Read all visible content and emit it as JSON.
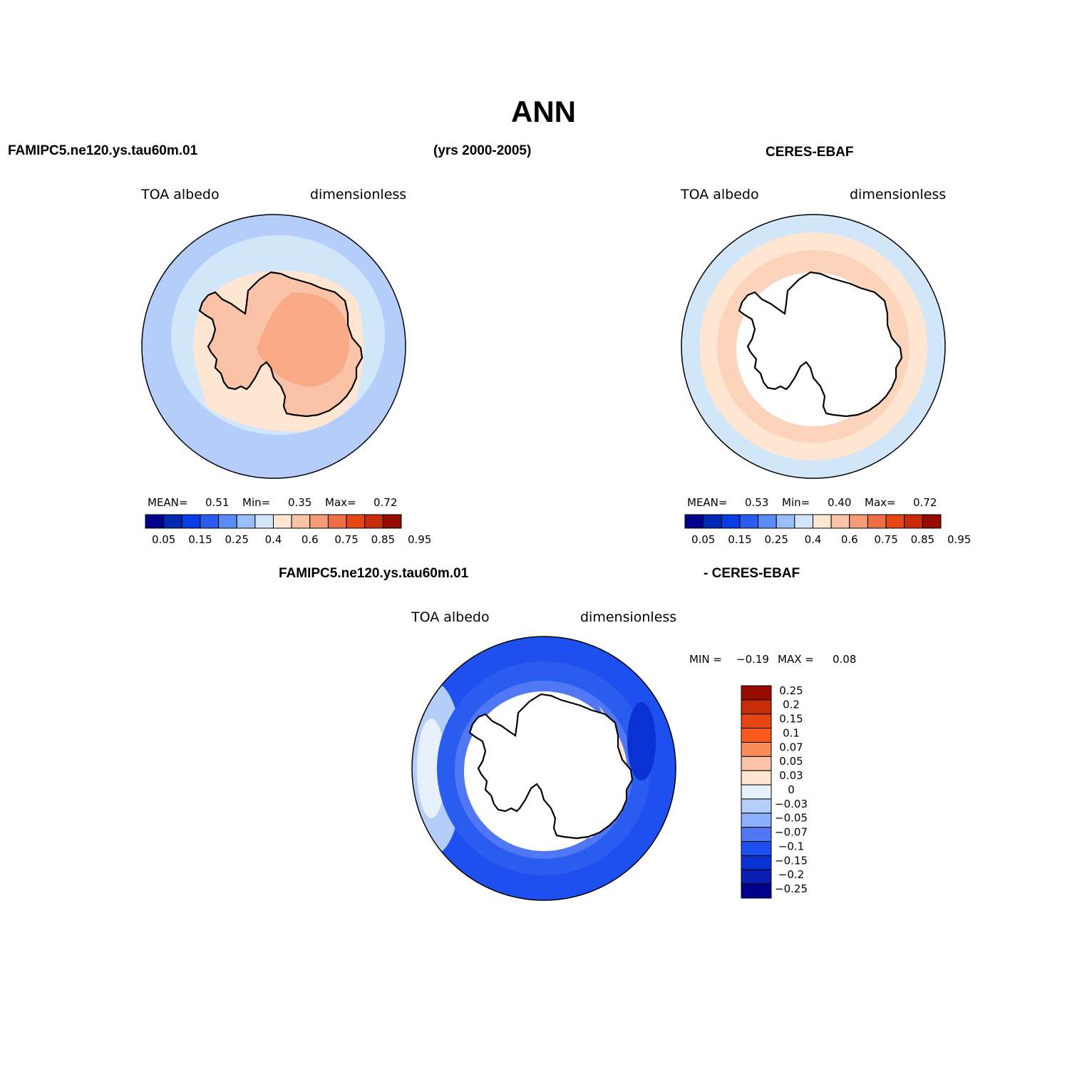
{
  "figure": {
    "title": "ANN",
    "period": "(yrs 2000-2005)"
  },
  "panels": {
    "model": {
      "case": "FAMIPC5.ne120.ys.tau60m.01",
      "variable": "TOA albedo",
      "units": "dimensionless",
      "stats": {
        "mean_label": "MEAN=",
        "mean": "0.51",
        "min_label": "Min=",
        "min": "0.35",
        "max_label": "Max=",
        "max": "0.72"
      }
    },
    "obs": {
      "case": "CERES-EBAF",
      "variable": "TOA albedo",
      "units": "dimensionless",
      "stats": {
        "mean_label": "MEAN=",
        "mean": "0.53",
        "min_label": "Min=",
        "min": "0.40",
        "max_label": "Max=",
        "max": "0.72"
      }
    },
    "diff": {
      "case_left": "FAMIPC5.ne120.ys.tau60m.01",
      "case_right": "- CERES-EBAF",
      "variable": "TOA albedo",
      "units": "dimensionless",
      "stats": {
        "min_label": "MIN =",
        "min": "−0.19",
        "max_label": "MAX =",
        "max": "0.08"
      }
    }
  },
  "colorbars": {
    "abs_colors": [
      "#00008c",
      "#002ab4",
      "#0a3ce6",
      "#2a5cf0",
      "#5a8cf5",
      "#9abefa",
      "#d2e6fa",
      "#ffe6d2",
      "#fac3a8",
      "#f59b78",
      "#f06e46",
      "#e64614",
      "#c82d0a",
      "#960a00"
    ],
    "abs_labels": [
      "0.05",
      "0.15",
      "0.25",
      "0.4",
      "0.6",
      "0.75",
      "0.85",
      "0.95"
    ],
    "diff_colors": [
      "#960a00",
      "#c82d0a",
      "#e64614",
      "#fa5a1e",
      "#fa8c5a",
      "#fac3a8",
      "#ffe6d2",
      "#e6f0fa",
      "#b4cdfa",
      "#8cafff",
      "#5078f5",
      "#1e50f0",
      "#0a32d2",
      "#0a1eb4",
      "#00008c"
    ],
    "diff_labels": [
      "0.25",
      "0.2",
      "0.15",
      "0.1",
      "0.07",
      "0.05",
      "0.03",
      "0",
      "−0.03",
      "−0.05",
      "−0.07",
      "−0.1",
      "−0.15",
      "−0.2",
      "−0.25"
    ]
  }
}
